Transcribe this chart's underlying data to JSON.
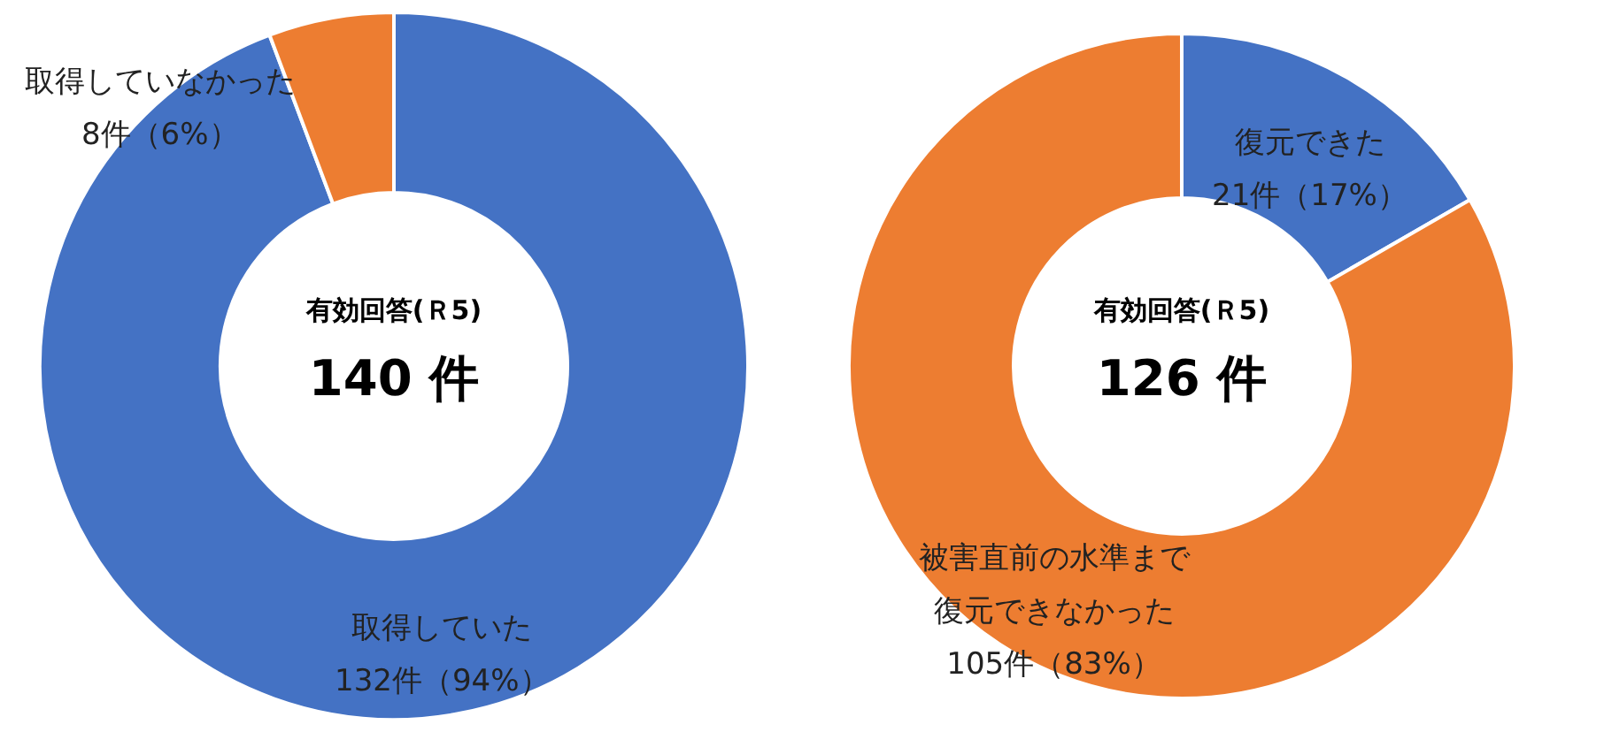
{
  "chart_data": [
    {
      "type": "donut",
      "title": "有効回答(Ｒ5)",
      "subtitle": "140 件",
      "categories": [
        "取得していた",
        "取得していなかった"
      ],
      "values": [
        132,
        8
      ],
      "colors": [
        "#4472c4",
        "#ed7d31"
      ],
      "value_labels": [
        "132件（94%）",
        "8件（6%）"
      ],
      "legend": false
    },
    {
      "type": "donut",
      "title": "有効回答(Ｒ5)",
      "subtitle": "126 件",
      "categories": [
        "復元できた",
        "被害直前の水準まで復元できなかった"
      ],
      "values": [
        21,
        105
      ],
      "colors": [
        "#4472c4",
        "#ed7d31"
      ],
      "value_labels": [
        "21件（17%）",
        "105件（83%）"
      ],
      "legend": false
    }
  ]
}
